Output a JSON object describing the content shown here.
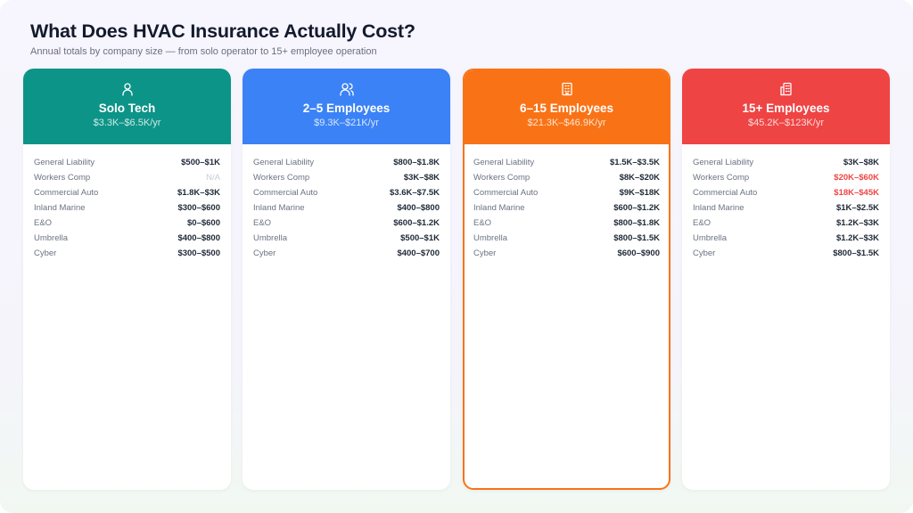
{
  "title": "What Does HVAC Insurance Actually Cost?",
  "subtitle": "Annual totals by company size — from solo operator to 15+ employee operation",
  "cards": [
    {
      "icon": "user-icon",
      "color": "#0d9488",
      "title": "Solo Tech",
      "price": "$3.3K–$6.5K/yr",
      "highlighted": false,
      "rows": [
        [
          "General Liability",
          "$500–$1K"
        ],
        [
          "Workers Comp",
          "N/A"
        ],
        [
          "Commercial Auto",
          "$1.8K–$3K"
        ],
        [
          "Inland Marine",
          "$300–$600"
        ],
        [
          "E&O",
          "$0–$600"
        ],
        [
          "Umbrella",
          "$400–$800"
        ],
        [
          "Cyber",
          "$300–$500"
        ]
      ]
    },
    {
      "icon": "users-icon",
      "color": "#3b82f6",
      "title": "2–5 Employees",
      "price": "$9.3K–$21K/yr",
      "highlighted": false,
      "rows": [
        [
          "General Liability",
          "$800–$1.8K"
        ],
        [
          "Workers Comp",
          "$3K–$8K"
        ],
        [
          "Commercial Auto",
          "$3.6K–$7.5K"
        ],
        [
          "Inland Marine",
          "$400–$800"
        ],
        [
          "E&O",
          "$600–$1.2K"
        ],
        [
          "Umbrella",
          "$500–$1K"
        ],
        [
          "Cyber",
          "$400–$700"
        ]
      ]
    },
    {
      "icon": "building-icon",
      "color": "#f97316",
      "title": "6–15 Employees",
      "price": "$21.3K–$46.9K/yr",
      "highlighted": true,
      "rows": [
        [
          "General Liability",
          "$1.5K–$3.5K"
        ],
        [
          "Workers Comp",
          "$8K–$20K"
        ],
        [
          "Commercial Auto",
          "$9K–$18K"
        ],
        [
          "Inland Marine",
          "$600–$1.2K"
        ],
        [
          "E&O",
          "$800–$1.8K"
        ],
        [
          "Umbrella",
          "$800–$1.5K"
        ],
        [
          "Cyber",
          "$600–$900"
        ]
      ]
    },
    {
      "icon": "buildings-icon",
      "color": "#ef4444",
      "title": "15+ Employees",
      "price": "$45.2K–$123K/yr",
      "highlighted": false,
      "rows": [
        [
          "General Liability",
          "$3K–$8K"
        ],
        [
          "Workers Comp",
          "$20K–$60K",
          "red"
        ],
        [
          "Commercial Auto",
          "$18K–$45K",
          "red"
        ],
        [
          "Inland Marine",
          "$1K–$2.5K"
        ],
        [
          "E&O",
          "$1.2K–$3K"
        ],
        [
          "Umbrella",
          "$1.2K–$3K"
        ],
        [
          "Cyber",
          "$800–$1.5K"
        ]
      ]
    }
  ]
}
